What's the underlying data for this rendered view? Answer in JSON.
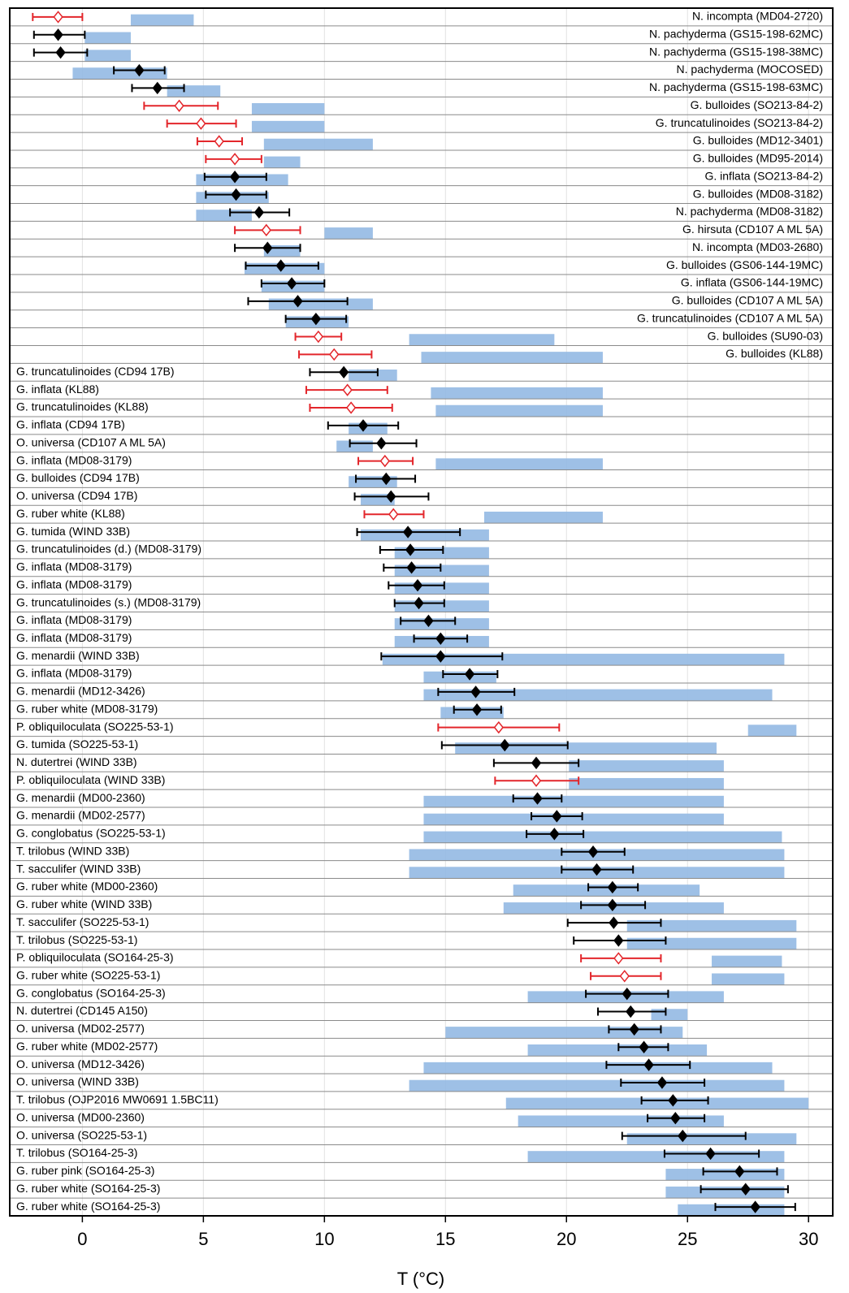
{
  "chart_data": {
    "type": "errorbar",
    "xlabel": "T (°C)",
    "xlim": [
      -3,
      31
    ],
    "xticks": [
      0,
      5,
      10,
      15,
      20,
      25,
      30
    ],
    "grid": true,
    "colors": {
      "filled": "#000000",
      "open": "#e3262b",
      "hist": "#93b9e3"
    },
    "categories": [
      "N. incompta (MD04-2720)",
      "N. pachyderma (GS15-198-62MC)",
      "N. pachyderma (GS15-198-38MC)",
      "N. pachyderma (MOCOSED)",
      "N. pachyderma (GS15-198-63MC)",
      "G. bulloides (SO213-84-2)",
      "G. truncatulinoides (SO213-84-2)",
      "G. bulloides (MD12-3401)",
      "G. bulloides (MD95-2014)",
      "G. inflata (SO213-84-2)",
      "G. bulloides (MD08-3182)",
      "N. pachyderma (MD08-3182)",
      "G. hirsuta (CD107 A ML 5A)",
      "N. incompta (MD03-2680)",
      "G. bulloides (GS06-144-19MC)",
      "G. inflata (GS06-144-19MC)",
      "G. bulloides (CD107 A ML 5A)",
      "G. truncatulinoides (CD107 A ML 5A)",
      "G. bulloides (SU90-03)",
      "G. bulloides (KL88)",
      "G. truncatulinoides (CD94 17B)",
      "G. inflata (KL88)",
      "G. truncatulinoides (KL88)",
      "G. inflata (CD94 17B)",
      "O. universa (CD107 A ML 5A)",
      "G. inflata (MD08-3179)",
      "G. bulloides (CD94 17B)",
      "O. universa (CD94 17B)",
      "G. ruber white (KL88)",
      "G. tumida (WIND 33B)",
      "G. truncatulinoides (d.) (MD08-3179)",
      "G. inflata (MD08-3179)",
      "G. inflata (MD08-3179)",
      "G. truncatulinoides (s.) (MD08-3179)",
      "G. inflata (MD08-3179)",
      "G. inflata (MD08-3179)",
      "G. menardii (WIND 33B)",
      "G. inflata (MD08-3179)",
      "G. menardii (MD12-3426)",
      "G. ruber white (MD08-3179)",
      "P. obliquiloculata (SO225-53-1)",
      "G. tumida (SO225-53-1)",
      "N. dutertrei (WIND 33B)",
      "P. obliquiloculata (WIND 33B)",
      "G. menardii (MD00-2360)",
      "G. menardii (MD02-2577)",
      "G. conglobatus (SO225-53-1)",
      "T. trilobus (WIND 33B)",
      "T. sacculifer (WIND 33B)",
      "G. ruber white (MD00-2360)",
      "G. ruber white (WIND 33B)",
      "T. sacculifer (SO225-53-1)",
      "T. trilobus (SO225-53-1)",
      "P. obliquiloculata (SO164-25-3)",
      "G. ruber white (SO225-53-1)",
      "G. conglobatus (SO164-25-3)",
      "N. dutertrei (CD145 A150)",
      "O. universa (MD02-2577)",
      "G. ruber white (MD02-2577)",
      "O. universa (MD12-3426)",
      "O. universa (WIND 33B)",
      "T. trilobus (OJP2016 MW0691 1.5BC11)",
      "O. universa (MD00-2360)",
      "O. universa (SO225-53-1)",
      "T. trilobus (SO164-25-3)",
      "G. ruber pink (SO164-25-3)",
      "G. ruber white (SO164-25-3)",
      "G. ruber white (SO164-25-3)"
    ],
    "values": [
      -1.0,
      -1.0,
      -0.9,
      2.35,
      3.1,
      4.0,
      4.9,
      5.65,
      6.3,
      6.3,
      6.35,
      7.3,
      7.6,
      7.65,
      8.2,
      8.65,
      8.9,
      9.65,
      9.75,
      10.4,
      10.8,
      10.95,
      11.1,
      11.6,
      12.35,
      12.5,
      12.55,
      12.75,
      12.85,
      13.45,
      13.55,
      13.6,
      13.85,
      13.9,
      14.3,
      14.8,
      14.8,
      16.0,
      16.25,
      16.3,
      17.2,
      17.45,
      18.75,
      18.75,
      18.8,
      19.6,
      19.5,
      21.1,
      21.25,
      21.9,
      21.9,
      21.95,
      22.15,
      22.15,
      22.4,
      22.5,
      22.65,
      22.8,
      23.2,
      23.4,
      23.95,
      24.4,
      24.5,
      24.8,
      25.95,
      27.15,
      27.4,
      27.8
    ],
    "lower": [
      -2.05,
      -2.0,
      -2.0,
      1.3,
      2.05,
      2.55,
      3.5,
      4.75,
      5.1,
      5.05,
      5.1,
      6.1,
      6.3,
      6.3,
      6.75,
      7.4,
      6.85,
      8.4,
      8.8,
      8.95,
      9.4,
      9.25,
      9.4,
      10.15,
      11.05,
      11.4,
      11.3,
      11.25,
      11.65,
      11.35,
      12.3,
      12.45,
      12.65,
      12.9,
      13.15,
      13.7,
      12.35,
      14.9,
      14.7,
      15.35,
      14.7,
      14.85,
      17.0,
      17.05,
      17.8,
      18.55,
      18.35,
      19.8,
      19.8,
      20.9,
      20.6,
      20.05,
      20.3,
      20.6,
      21.0,
      20.8,
      21.3,
      21.75,
      22.15,
      21.65,
      22.25,
      23.1,
      23.35,
      22.3,
      24.05,
      25.65,
      25.55,
      26.15
    ],
    "upper": [
      0.0,
      0.1,
      0.2,
      3.4,
      4.2,
      5.6,
      6.35,
      6.6,
      7.4,
      7.6,
      7.6,
      8.55,
      9.0,
      9.0,
      9.75,
      10.0,
      10.95,
      10.9,
      10.7,
      11.95,
      12.2,
      12.6,
      12.8,
      13.05,
      13.8,
      13.65,
      13.75,
      14.3,
      14.1,
      15.6,
      14.9,
      14.8,
      14.95,
      14.95,
      15.4,
      15.9,
      17.35,
      17.15,
      17.85,
      17.3,
      19.7,
      20.05,
      20.5,
      20.5,
      19.8,
      20.65,
      20.7,
      22.4,
      22.75,
      22.95,
      23.25,
      23.9,
      24.1,
      23.9,
      23.9,
      24.2,
      24.1,
      23.9,
      24.2,
      25.1,
      25.7,
      25.85,
      25.7,
      27.4,
      27.95,
      28.7,
      29.15,
      29.45
    ],
    "open": [
      true,
      false,
      false,
      false,
      false,
      true,
      true,
      true,
      true,
      false,
      false,
      false,
      true,
      false,
      false,
      false,
      false,
      false,
      true,
      true,
      false,
      true,
      true,
      false,
      false,
      true,
      false,
      false,
      true,
      false,
      false,
      false,
      false,
      false,
      false,
      false,
      false,
      false,
      false,
      false,
      true,
      false,
      false,
      true,
      false,
      false,
      false,
      false,
      false,
      false,
      false,
      false,
      false,
      true,
      true,
      false,
      false,
      false,
      false,
      false,
      false,
      false,
      false,
      false,
      false,
      false,
      false,
      false
    ],
    "hist_range": [
      [
        2.0,
        4.6
      ],
      [
        0.1,
        2.0
      ],
      [
        0.1,
        2.0
      ],
      [
        -0.4,
        3.5
      ],
      [
        3.5,
        5.7
      ],
      [
        7.0,
        10.0
      ],
      [
        7.0,
        10.0
      ],
      [
        7.5,
        12.0
      ],
      [
        7.5,
        9.0
      ],
      [
        4.7,
        8.5
      ],
      [
        4.7,
        7.7
      ],
      [
        4.7,
        7.0
      ],
      [
        10.0,
        12.0
      ],
      [
        7.5,
        9.0
      ],
      [
        6.7,
        10.0
      ],
      [
        7.4,
        10.0
      ],
      [
        7.7,
        12.0
      ],
      [
        8.4,
        11.0
      ],
      [
        13.5,
        19.5
      ],
      [
        14.0,
        21.5
      ],
      [
        11.0,
        13.0
      ],
      [
        14.4,
        21.5
      ],
      [
        14.6,
        21.5
      ],
      [
        11.0,
        12.6
      ],
      [
        10.5,
        12.0
      ],
      [
        14.6,
        21.5
      ],
      [
        11.0,
        13.0
      ],
      [
        11.5,
        12.9
      ],
      [
        16.6,
        21.5
      ],
      [
        11.5,
        16.8
      ],
      [
        12.9,
        16.8
      ],
      [
        12.9,
        16.8
      ],
      [
        12.9,
        16.8
      ],
      [
        12.9,
        16.8
      ],
      [
        12.9,
        16.8
      ],
      [
        12.9,
        16.8
      ],
      [
        12.4,
        29.0
      ],
      [
        14.1,
        17.1
      ],
      [
        14.1,
        28.5
      ],
      [
        14.8,
        17.4
      ],
      [
        27.5,
        29.5
      ],
      [
        15.4,
        26.2
      ],
      [
        20.1,
        26.5
      ],
      [
        20.1,
        26.5
      ],
      [
        14.1,
        26.5
      ],
      [
        14.1,
        26.5
      ],
      [
        14.1,
        28.9
      ],
      [
        13.5,
        29.0
      ],
      [
        13.5,
        29.0
      ],
      [
        17.8,
        25.5
      ],
      [
        17.4,
        26.5
      ],
      [
        22.5,
        29.5
      ],
      [
        22.5,
        29.5
      ],
      [
        26.0,
        28.9
      ],
      [
        26.0,
        29.0
      ],
      [
        18.4,
        26.5
      ],
      [
        23.5,
        25.0
      ],
      [
        15.0,
        24.8
      ],
      [
        18.4,
        25.8
      ],
      [
        14.1,
        28.5
      ],
      [
        13.5,
        29.0
      ],
      [
        17.5,
        30.0
      ],
      [
        18.0,
        26.5
      ],
      [
        22.5,
        29.5
      ],
      [
        18.4,
        29.0
      ],
      [
        24.1,
        29.0
      ],
      [
        24.1,
        29.0
      ],
      [
        24.6,
        29.0
      ]
    ]
  }
}
